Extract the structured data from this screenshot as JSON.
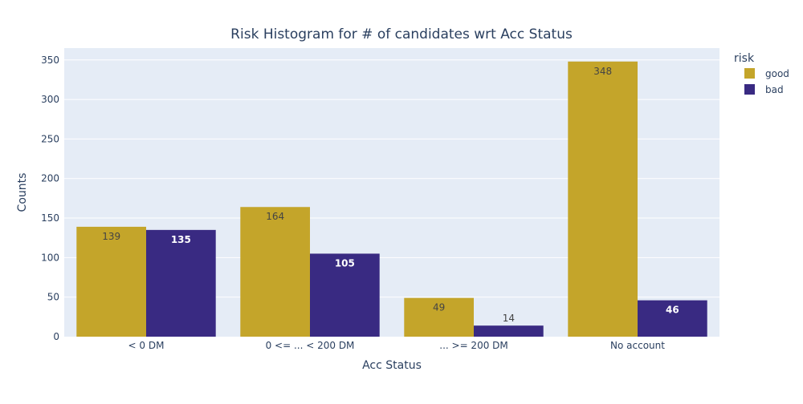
{
  "chart_data": {
    "type": "bar",
    "title": "Risk Histogram for # of candidates wrt Acc Status",
    "xlabel": "Acc Status",
    "ylabel": "Counts",
    "categories": [
      "< 0 DM",
      "0 <= ... < 200 DM",
      "... >= 200 DM",
      "No account"
    ],
    "series": [
      {
        "name": "good",
        "values": [
          139,
          164,
          49,
          348
        ],
        "color": "#c4a52a"
      },
      {
        "name": "bad",
        "values": [
          135,
          105,
          14,
          46
        ],
        "color": "#392a82"
      }
    ],
    "ylim": [
      0,
      365
    ],
    "yticks": [
      0,
      50,
      100,
      150,
      200,
      250,
      300,
      350
    ],
    "grid": true,
    "legend": {
      "title": "risk",
      "placement": "top-right"
    },
    "colors": {
      "plot_bg": "#e5ecf6",
      "grid": "#ffffff",
      "text": "#2a3f5f"
    }
  }
}
